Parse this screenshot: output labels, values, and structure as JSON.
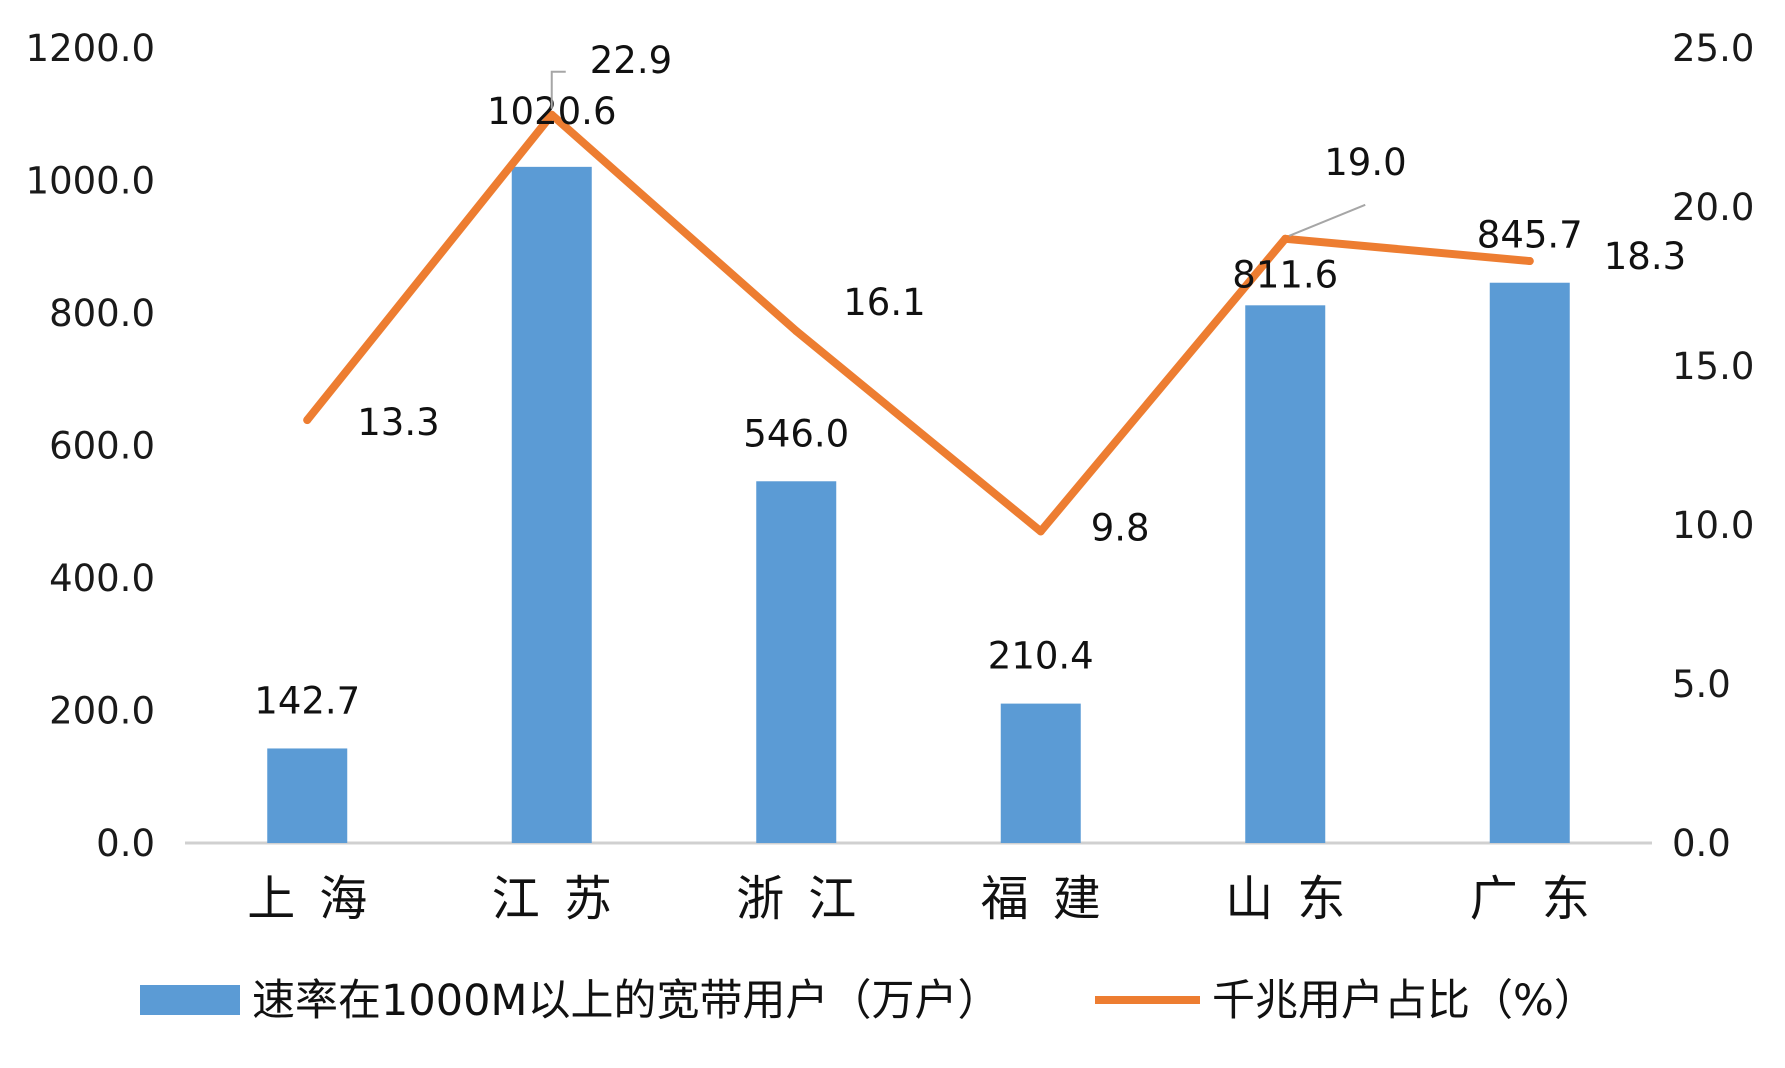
{
  "chart_data": {
    "type": "bar",
    "categories": [
      "上海",
      "江苏",
      "浙江",
      "福建",
      "山东",
      "广东"
    ],
    "series": [
      {
        "name": "速率在1000M以上的宽带用户（万户）",
        "type": "bar",
        "axis": "left",
        "color": "#5B9BD5",
        "values": [
          142.7,
          1020.6,
          546.0,
          210.4,
          811.6,
          845.7
        ],
        "labels": [
          "142.7",
          "1020.6",
          "546.0",
          "210.4",
          "811.6",
          "845.7"
        ]
      },
      {
        "name": "千兆用户占比（%）",
        "type": "line",
        "axis": "right",
        "color": "#ED7D31",
        "values": [
          13.3,
          22.9,
          16.1,
          9.8,
          19.0,
          18.3
        ],
        "labels": [
          "13.3",
          "22.9",
          "16.1",
          "9.8",
          "19.0",
          "18.3"
        ]
      }
    ],
    "left_axis": {
      "range": [
        0,
        1200
      ],
      "ticks": [
        "0.0",
        "200.0",
        "400.0",
        "600.0",
        "800.0",
        "1000.0",
        "1200.0"
      ]
    },
    "right_axis": {
      "range": [
        0,
        25
      ],
      "ticks": [
        "0.0",
        "5.0",
        "10.0",
        "15.0",
        "20.0",
        "25.0"
      ]
    },
    "grid": false,
    "legend_position": "bottom"
  }
}
